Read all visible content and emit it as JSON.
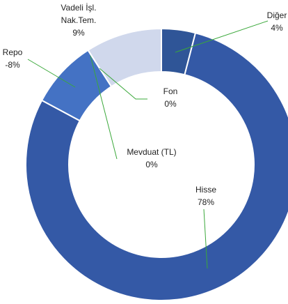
{
  "chart_data": {
    "type": "donut",
    "categories": [
      "Diğer",
      "Hisse",
      "Repo",
      "Mevduat (TL)",
      "Fon",
      "Vadeli İşl. Nak.Tem."
    ],
    "values": [
      4,
      78,
      -8,
      0,
      0,
      9
    ],
    "value_labels": [
      "4%",
      "78%",
      "-8%",
      "0%",
      "0%",
      "9%"
    ],
    "colors": [
      "#2f5597",
      "#3459a6",
      "#4472c4",
      "#b4c3e4",
      "#c5d0ea",
      "#d0d8ec"
    ]
  }
}
